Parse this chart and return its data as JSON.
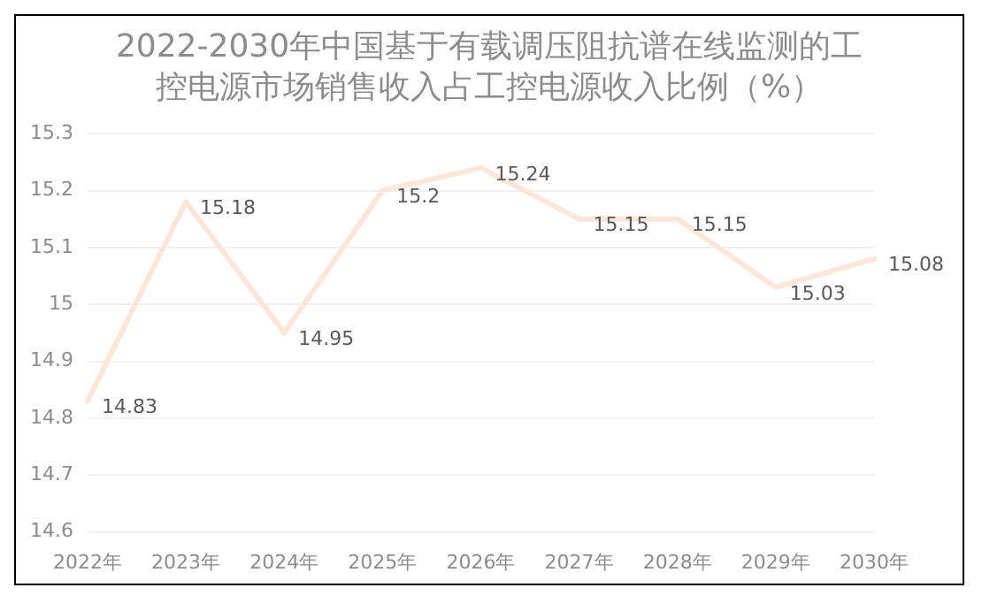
{
  "chart_data": {
    "type": "line",
    "title": "2022-2030年中国基于有载调压阻抗谱在线监测的工控电源市场销售收入占工控电源收入比例（%）",
    "categories": [
      "2022年",
      "2023年",
      "2024年",
      "2025年",
      "2026年",
      "2027年",
      "2028年",
      "2029年",
      "2030年"
    ],
    "series": [
      {
        "color": "#fde7da",
        "values": [
          14.83,
          15.18,
          14.95,
          15.2,
          15.24,
          15.15,
          15.15,
          15.03,
          15.08
        ]
      }
    ],
    "ylim": [
      14.6,
      15.3
    ],
    "yticks": [
      14.6,
      14.7,
      14.8,
      14.9,
      15,
      15.1,
      15.2,
      15.3
    ],
    "grid": "y",
    "data_labels": true,
    "legend": false,
    "marker": "none",
    "line_style": "solid"
  }
}
